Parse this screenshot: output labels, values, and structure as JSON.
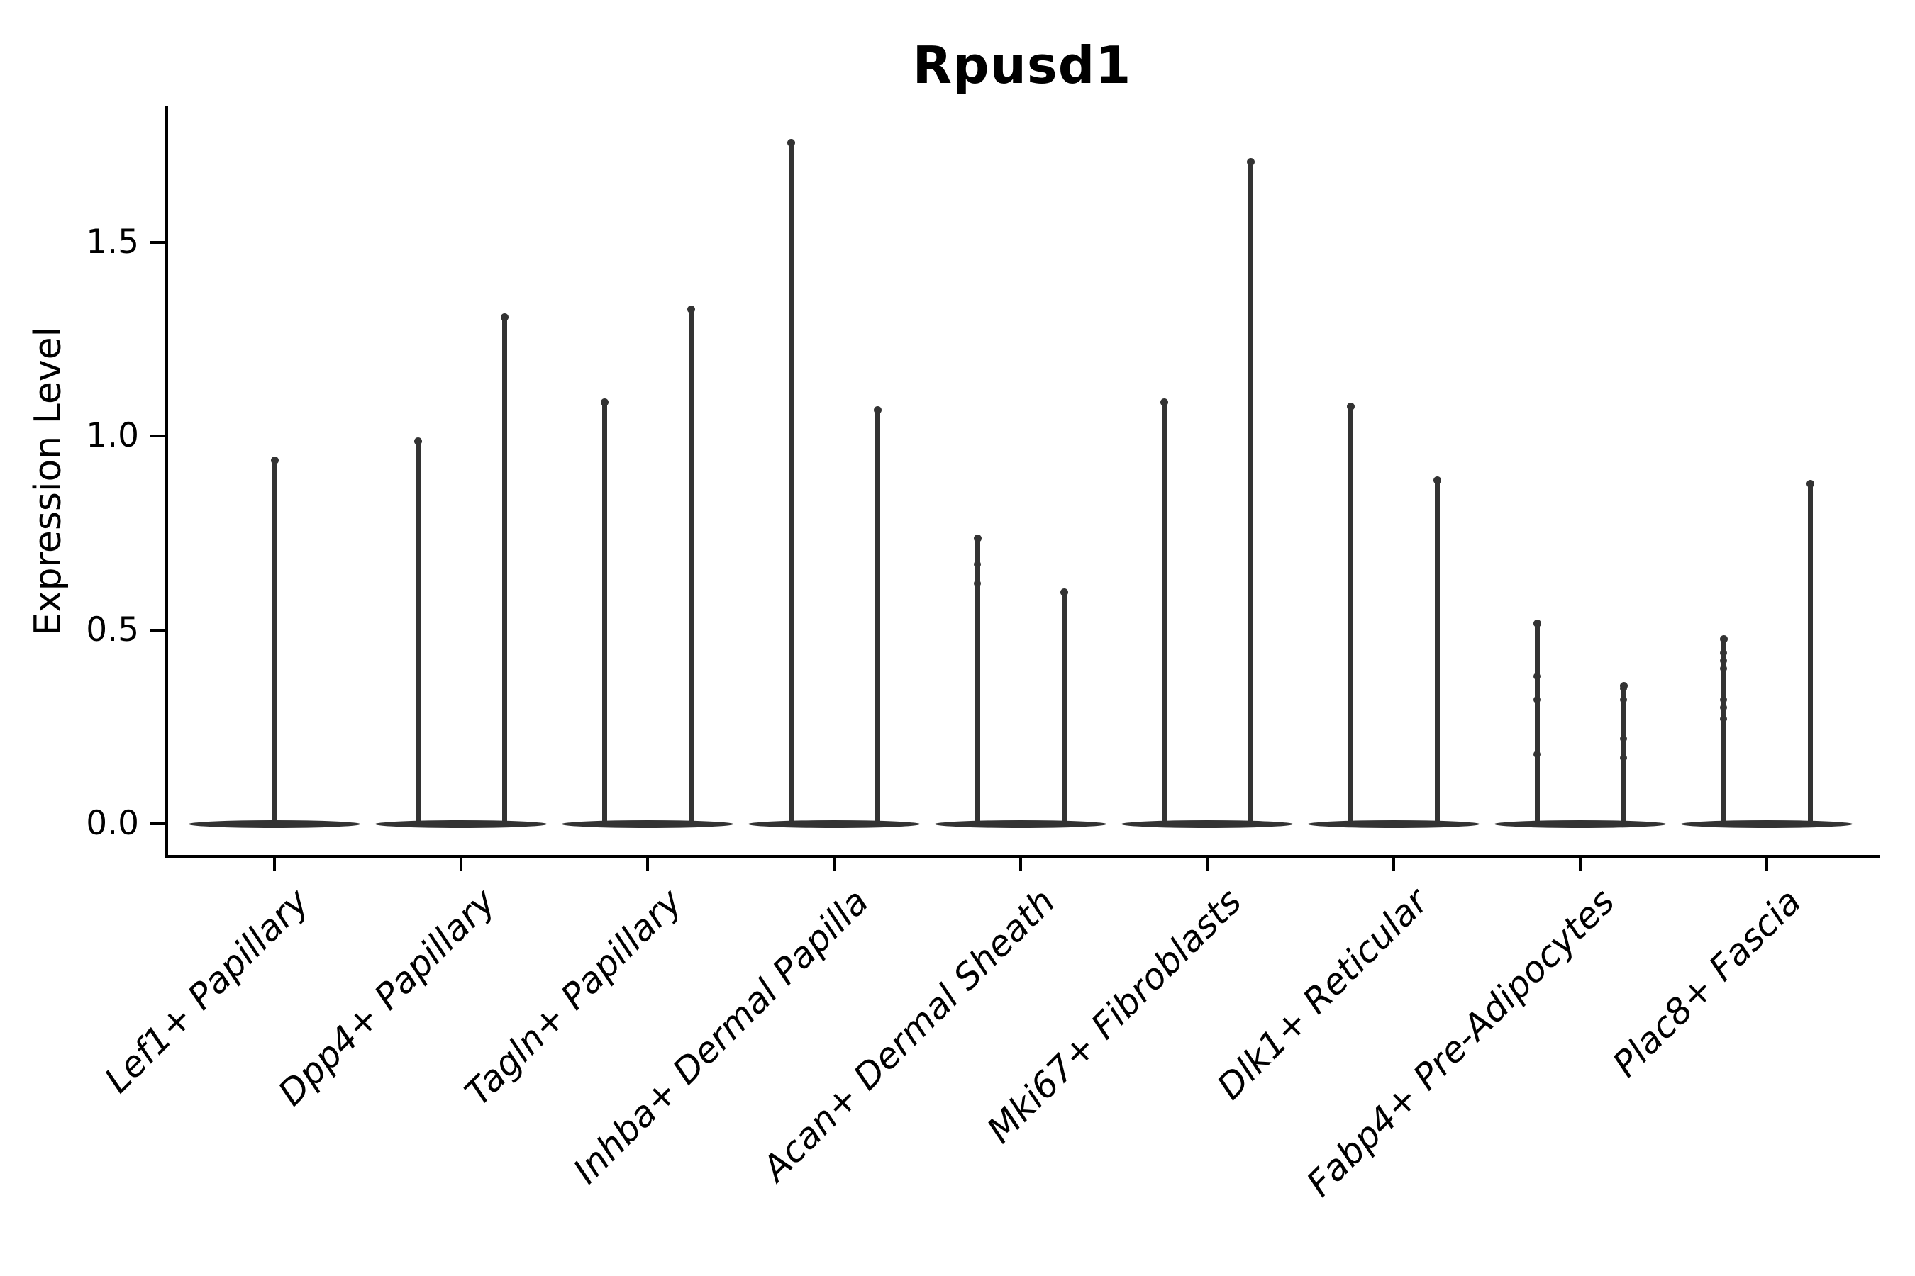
{
  "colors": {
    "background": "#ffffff",
    "violin": "#333333",
    "axis": "#000000",
    "text": "#000000"
  },
  "chart_data": {
    "type": "violin",
    "title": "Rpusd1",
    "xlabel": "",
    "ylabel": "Expression Level",
    "ylim": [
      0,
      1.86
    ],
    "yticks": [
      0.0,
      0.5,
      1.0,
      1.5
    ],
    "ytick_labels": [
      "0.0",
      "0.5",
      "1.0",
      "1.5"
    ],
    "grid": false,
    "legend": "none",
    "x_tick_rotation": 45,
    "categories": [
      "Lef1+ Papillary",
      "Dpp4+ Papillary",
      "Tagln+ Papillary",
      "Inhba+ Dermal Papilla",
      "Acan+ Dermal Sheath",
      "Mki67+ Fibroblasts",
      "Dlk1+ Reticular",
      "Fabp4+ Pre-Adipocytes",
      "Plac8+ Fascia"
    ],
    "series": [
      {
        "category": "Lef1+ Papillary",
        "violins": [
          {
            "position": "center",
            "baseline_value": 0.0,
            "max_expression": 0.94,
            "points": []
          }
        ]
      },
      {
        "category": "Dpp4+ Papillary",
        "violins": [
          {
            "position": "left",
            "baseline_value": 0.0,
            "max_expression": 0.99,
            "points": []
          },
          {
            "position": "right",
            "baseline_value": 0.0,
            "max_expression": 1.31,
            "points": []
          }
        ]
      },
      {
        "category": "Tagln+ Papillary",
        "violins": [
          {
            "position": "left",
            "baseline_value": 0.0,
            "max_expression": 1.09,
            "points": []
          },
          {
            "position": "right",
            "baseline_value": 0.0,
            "max_expression": 1.33,
            "points": []
          }
        ]
      },
      {
        "category": "Inhba+ Dermal Papilla",
        "violins": [
          {
            "position": "left",
            "baseline_value": 0.0,
            "max_expression": 1.76,
            "points": []
          },
          {
            "position": "right",
            "baseline_value": 0.0,
            "max_expression": 1.07,
            "points": []
          }
        ]
      },
      {
        "category": "Acan+ Dermal Sheath",
        "violins": [
          {
            "position": "left",
            "baseline_value": 0.0,
            "max_expression": 0.74,
            "points": [
              0.67,
              0.62
            ]
          },
          {
            "position": "right",
            "baseline_value": 0.0,
            "max_expression": 0.6,
            "points": []
          }
        ]
      },
      {
        "category": "Mki67+ Fibroblasts",
        "violins": [
          {
            "position": "left",
            "baseline_value": 0.0,
            "max_expression": 1.09,
            "points": []
          },
          {
            "position": "right",
            "baseline_value": 0.0,
            "max_expression": 1.71,
            "points": []
          }
        ]
      },
      {
        "category": "Dlk1+ Reticular",
        "violins": [
          {
            "position": "left",
            "baseline_value": 0.0,
            "max_expression": 1.08,
            "points": []
          },
          {
            "position": "right",
            "baseline_value": 0.0,
            "max_expression": 0.89,
            "points": []
          }
        ]
      },
      {
        "category": "Fabp4+ Pre-Adipocytes",
        "violins": [
          {
            "position": "left",
            "baseline_value": 0.0,
            "max_expression": 0.52,
            "points": [
              0.38,
              0.32,
              0.18
            ]
          },
          {
            "position": "right",
            "baseline_value": 0.0,
            "max_expression": 0.36,
            "points": [
              0.35,
              0.32,
              0.22,
              0.17
            ]
          }
        ]
      },
      {
        "category": "Plac8+ Fascia",
        "violins": [
          {
            "position": "left",
            "baseline_value": 0.0,
            "max_expression": 0.48,
            "points": [
              0.44,
              0.42,
              0.4,
              0.32,
              0.3,
              0.27
            ]
          },
          {
            "position": "right",
            "baseline_value": 0.0,
            "max_expression": 0.88,
            "points": []
          }
        ]
      }
    ]
  }
}
